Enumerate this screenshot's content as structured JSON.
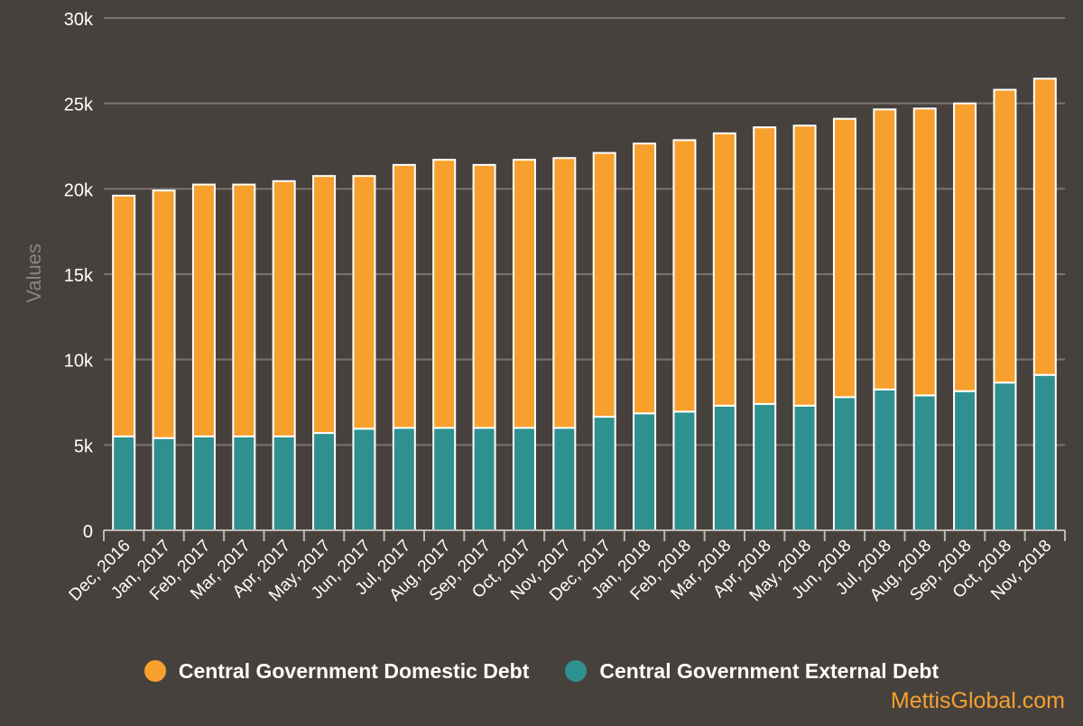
{
  "chart_data": {
    "type": "bar",
    "stacked": true,
    "title": "",
    "xlabel": "",
    "ylabel": "Values",
    "ylim": [
      0,
      30000
    ],
    "yticks": [
      0,
      5000,
      10000,
      15000,
      20000,
      25000,
      30000
    ],
    "ytick_labels": [
      "0",
      "5k",
      "10k",
      "15k",
      "20k",
      "25k",
      "30k"
    ],
    "grid": true,
    "legend_position": "bottom",
    "categories": [
      "Dec, 2016",
      "Jan, 2017",
      "Feb, 2017",
      "Mar, 2017",
      "Apr, 2017",
      "May, 2017",
      "Jun, 2017",
      "Jul, 2017",
      "Aug, 2017",
      "Sep, 2017",
      "Oct, 2017",
      "Nov, 2017",
      "Dec, 2017",
      "Jan, 2018",
      "Feb, 2018",
      "Mar, 2018",
      "Apr, 2018",
      "May, 2018",
      "Jun, 2018",
      "Jul, 2018",
      "Aug, 2018",
      "Sep, 2018",
      "Oct, 2018",
      "Nov, 2018"
    ],
    "series": [
      {
        "name": "Central Government External Debt",
        "color": "#2e9190",
        "values": [
          5500,
          5400,
          5500,
          5500,
          5500,
          5700,
          5950,
          6000,
          6000,
          6000,
          6000,
          6000,
          6650,
          6850,
          6950,
          7300,
          7400,
          7300,
          7800,
          8250,
          7900,
          8150,
          8650,
          9100
        ]
      },
      {
        "name": "Central Government Domestic Debt",
        "color": "#f7a02e",
        "values": [
          14100,
          14500,
          14750,
          14750,
          14950,
          15050,
          14800,
          15400,
          15700,
          15400,
          15700,
          15800,
          15450,
          15800,
          15900,
          15950,
          16200,
          16400,
          16300,
          16400,
          16800,
          16850,
          17150,
          17350
        ]
      }
    ]
  },
  "legend": {
    "items": [
      {
        "label": "Central Government Domestic Debt",
        "color": "#f7a02e"
      },
      {
        "label": "Central Government External Debt",
        "color": "#2e9190"
      }
    ]
  },
  "watermark": "MettisGlobal.com"
}
